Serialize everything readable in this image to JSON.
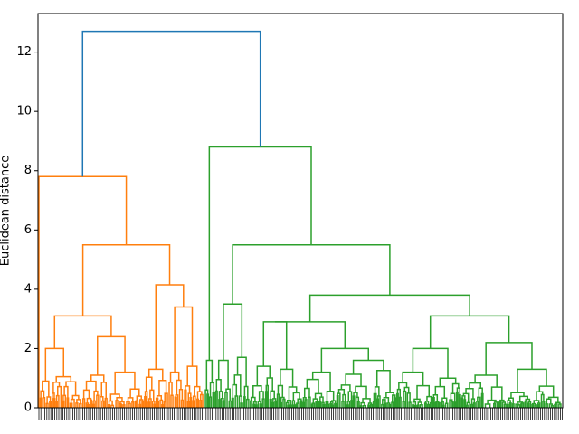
{
  "chart_data": {
    "type": "dendrogram",
    "title": "",
    "xlabel": "",
    "ylabel": "Euclidean distance",
    "ylim": [
      0,
      13.3
    ],
    "yticks": [
      0,
      2,
      4,
      6,
      8,
      10,
      12
    ],
    "grid": false,
    "legend": "none",
    "colors": {
      "root": "#1f77b4",
      "cluster_1": "#ff7f0e",
      "cluster_2": "#2ca02c"
    },
    "root_height": 12.7,
    "clusters": [
      {
        "color_key": "cluster_1",
        "top_height": 7.8,
        "merge_heights": [
          7.8,
          5.5,
          4.15,
          3.1,
          2.4,
          2.0,
          1.5
        ]
      },
      {
        "color_key": "cluster_2",
        "top_height": 8.8,
        "merge_heights": [
          8.8,
          5.5,
          3.8,
          3.1,
          2.9,
          2.2,
          2.0,
          1.8
        ]
      }
    ]
  }
}
